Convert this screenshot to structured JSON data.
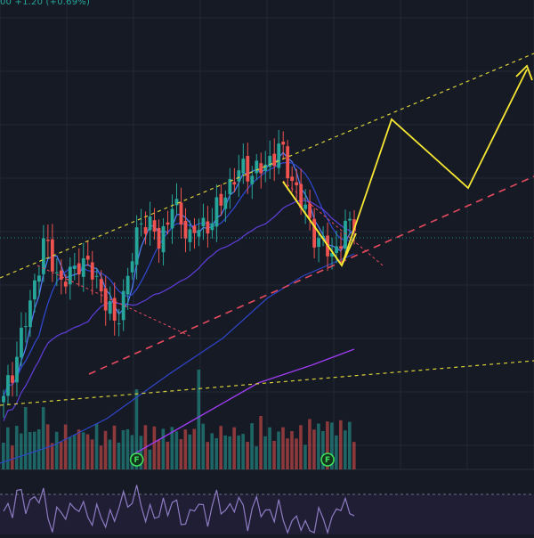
{
  "header": {
    "price_change_text": "00 +1.20 (+0.69%)"
  },
  "colors": {
    "background": "#161a25",
    "grid": "#232838",
    "candle_up": "#26a69a",
    "candle_down": "#ef5350",
    "volume_up": "#26a69a",
    "volume_down": "#ef5350",
    "ma_fast": "#4e7bf2",
    "ma_mid": "#2f46c9",
    "ma_slow": "#5a3ccf",
    "ma_long": "#9c3cf0",
    "channel_lines": "#d9cf3a",
    "support_trend": "#e84a5f",
    "flag_pattern": "#f7e733",
    "rsi_line": "#8e7cc3",
    "rsi_band": "#2a2244",
    "current_price_line": "#26a69a",
    "earnings_marker": "#3fe05a"
  },
  "chart_data": {
    "type": "candlestick",
    "title": "",
    "xlabel": "",
    "ylabel": "",
    "grid": true,
    "bar_count": 80,
    "ylim": [
      0,
      100
    ],
    "current_price_level": 58,
    "markers": [
      {
        "label": "F",
        "bar": 30
      },
      {
        "label": "F",
        "bar": 73
      }
    ],
    "indicators": [
      "MA fast",
      "MA mid",
      "MA slow",
      "MA long",
      "Volume",
      "RSI"
    ],
    "projection": "yellow zigzag projecting higher from flag breakout"
  },
  "markers_text": {
    "f1": "F",
    "f2": "F"
  }
}
